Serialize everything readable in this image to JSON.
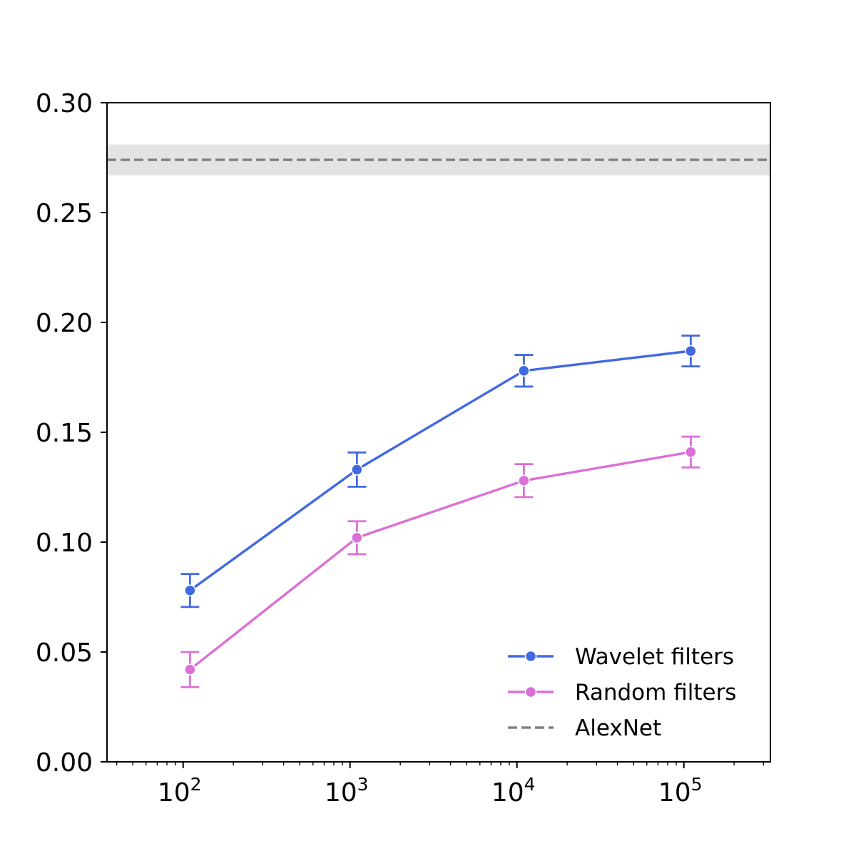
{
  "chart_data": {
    "type": "line",
    "title": "",
    "xlabel": "",
    "ylabel": "",
    "x_scale": "log",
    "xlim": [
      35,
      330000
    ],
    "ylim": [
      0,
      0.3
    ],
    "grid": false,
    "y_ticks": [
      "0.00",
      "0.05",
      "0.10",
      "0.15",
      "0.20",
      "0.25",
      "0.30"
    ],
    "x_ticks": [
      {
        "value": 100,
        "base": "10",
        "exp": "2"
      },
      {
        "value": 1000,
        "base": "10",
        "exp": "3"
      },
      {
        "value": 10000,
        "base": "10",
        "exp": "4"
      },
      {
        "value": 100000,
        "base": "10",
        "exp": "5"
      }
    ],
    "legend_position": "lower-right",
    "series": [
      {
        "name": "Wavelet filters",
        "color": "#4169e1",
        "x": [
          110,
          1100,
          11000,
          110000
        ],
        "y": [
          0.078,
          0.133,
          0.178,
          0.187
        ],
        "err": [
          0.0075,
          0.0078,
          0.0072,
          0.007
        ]
      },
      {
        "name": "Random filters",
        "color": "#da70d6",
        "x": [
          110,
          1100,
          11000,
          110000
        ],
        "y": [
          0.042,
          0.102,
          0.128,
          0.141
        ],
        "err": [
          0.008,
          0.0075,
          0.0075,
          0.007
        ]
      }
    ],
    "reference": {
      "name": "AlexNet",
      "color": "#808080",
      "value": 0.274,
      "band": [
        0.267,
        0.281
      ],
      "style": "dashed"
    }
  }
}
